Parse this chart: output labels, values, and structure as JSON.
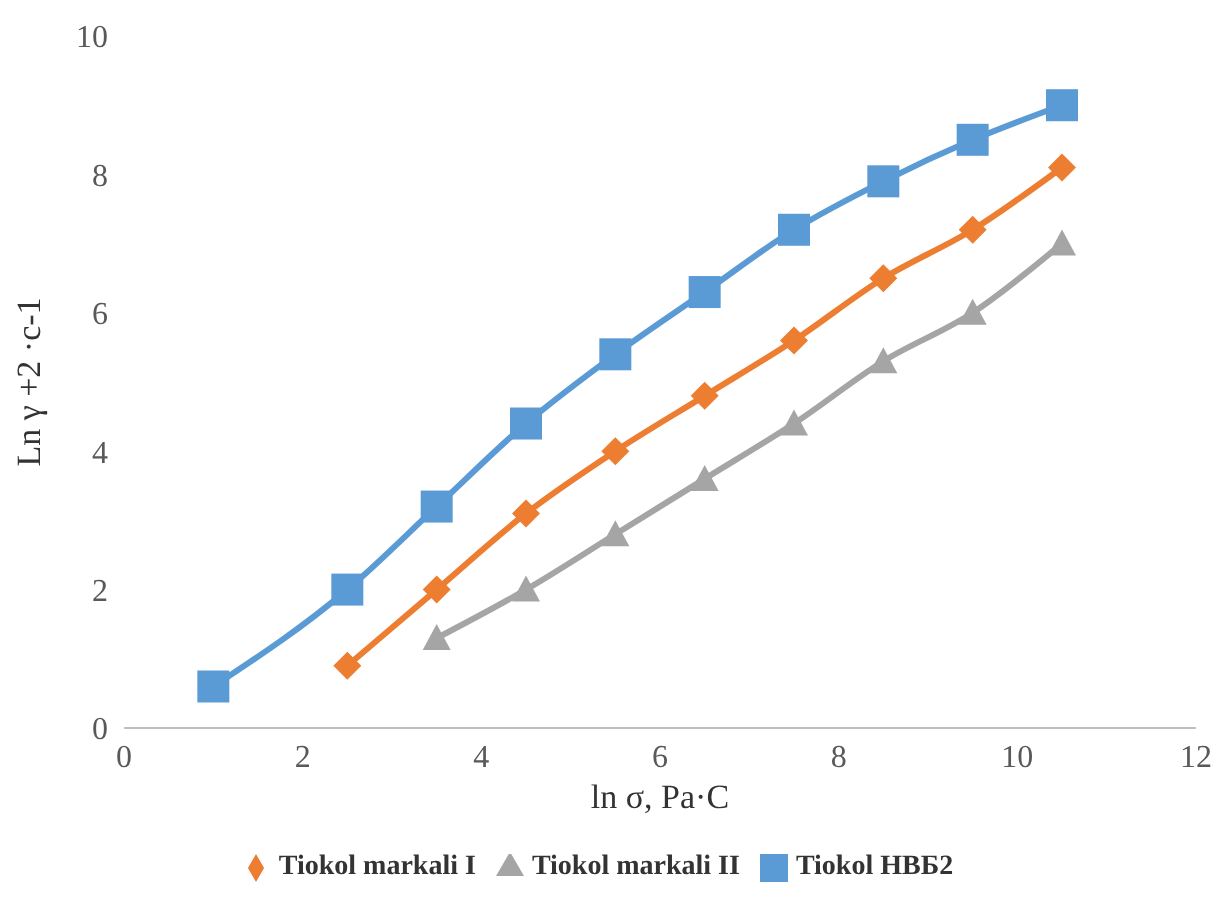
{
  "chart_data": {
    "type": "line",
    "xlabel": "ln σ, Pa·C",
    "ylabel": "Ln γ +2 ·c-1",
    "xlim": [
      0,
      12
    ],
    "xticks": [
      0,
      2,
      4,
      6,
      8,
      10,
      12
    ],
    "ylim": [
      0,
      10
    ],
    "yticks": [
      0,
      2,
      4,
      6,
      8,
      10
    ],
    "grid": false,
    "legend": "bottom",
    "series": [
      {
        "name": "Tiokol НВБ2",
        "color": "#5b9bd5",
        "marker": "square",
        "x": [
          1,
          2.5,
          3.5,
          4.5,
          5.5,
          6.5,
          7.5,
          8.5,
          9.5,
          10.5
        ],
        "values": [
          0.6,
          2.0,
          3.2,
          4.4,
          5.4,
          6.3,
          7.2,
          7.9,
          8.5,
          9.0
        ]
      },
      {
        "name": "Tiokol markali I",
        "color": "#ed7d31",
        "marker": "diamond",
        "x": [
          2.5,
          3.5,
          4.5,
          5.5,
          6.5,
          7.5,
          8.5,
          9.5,
          10.5
        ],
        "values": [
          0.9,
          2.0,
          3.1,
          4.0,
          4.8,
          5.6,
          6.5,
          7.2,
          8.1
        ]
      },
      {
        "name": "Tiokol markali II",
        "color": "#a5a5a5",
        "marker": "triangle",
        "x": [
          3.5,
          4.5,
          5.5,
          6.5,
          7.5,
          8.5,
          9.5,
          10.5
        ],
        "values": [
          1.3,
          2.0,
          2.8,
          3.6,
          4.4,
          5.3,
          6.0,
          7.0
        ]
      }
    ]
  }
}
